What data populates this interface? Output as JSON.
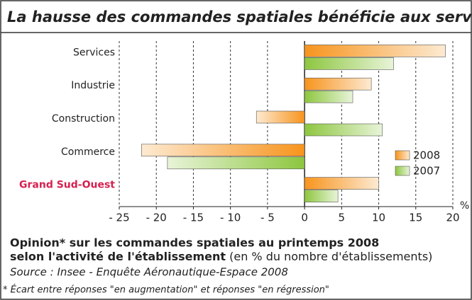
{
  "chart_data": {
    "type": "hbar",
    "title": "La hausse des commandes spatiales bénéficie aux services",
    "categories": [
      "Services",
      "Industrie",
      "Construction",
      "Commerce",
      "Grand Sud-Ouest"
    ],
    "series": [
      {
        "name": "2008",
        "color": "#f7941d",
        "values": [
          19,
          9,
          -6.5,
          -22,
          10
        ]
      },
      {
        "name": "2007",
        "color": "#8dc63f",
        "values": [
          12,
          6.5,
          10.5,
          -18.5,
          4.5
        ]
      }
    ],
    "xlim": [
      -25,
      20
    ],
    "xticks": [
      {
        "value": -25,
        "label": "- 25"
      },
      {
        "value": -20,
        "label": "- 20"
      },
      {
        "value": -15,
        "label": "- 15"
      },
      {
        "value": -10,
        "label": "- 10"
      },
      {
        "value": -5,
        "label": "- 5"
      },
      0,
      5,
      10,
      15,
      20
    ],
    "x_unit": "%",
    "grid": true,
    "legend": "right",
    "subtitle": {
      "bold_line_1": "Opinion* sur les commandes spatiales au printemps 2008",
      "bold_line_2": "selon l'activité de l'établissement",
      "normal": " (en % du nombre d'établissements)"
    },
    "source": "Source : Insee - Enquête Aéronautique-Espace 2008",
    "footnote": "* Écart entre réponses \"en augmentation\" et réponses \"en régression\""
  }
}
